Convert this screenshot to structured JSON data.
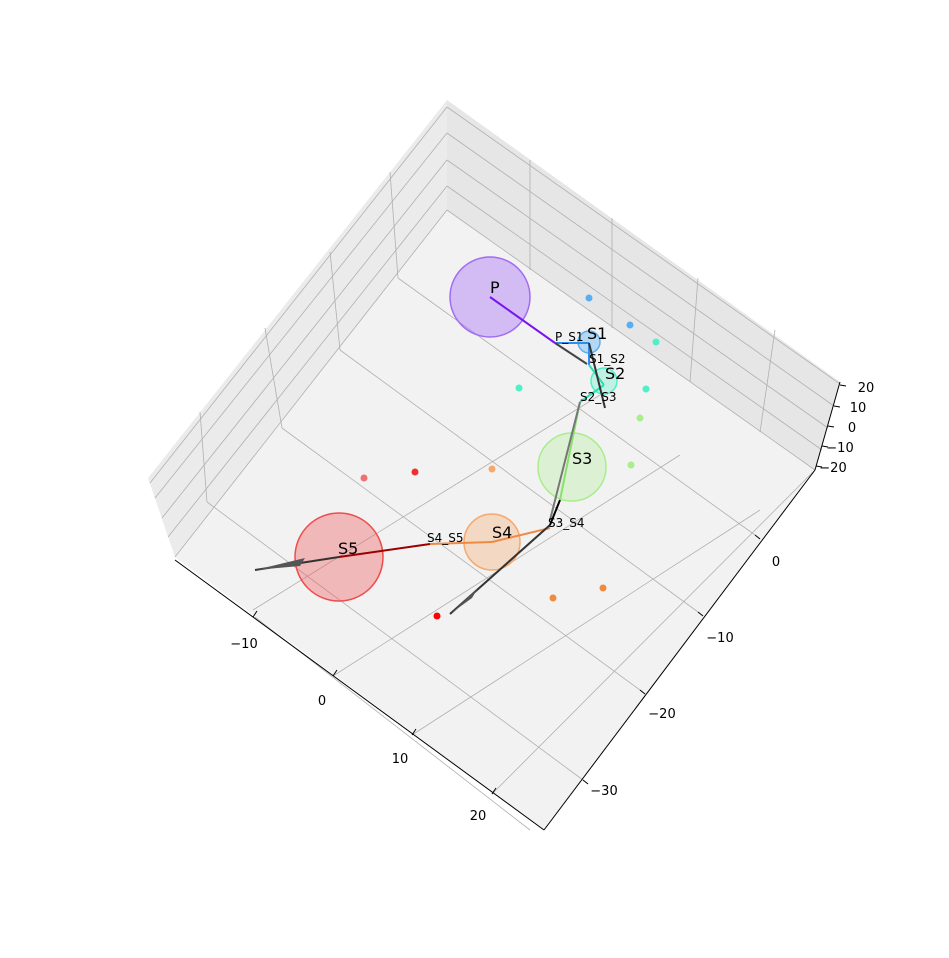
{
  "chart_data": {
    "type": "scatter",
    "projection": "3d",
    "grid": true,
    "axes": {
      "x": {
        "ticks": [
          -10,
          0,
          10,
          20
        ],
        "tick_labels": [
          "−10",
          "0",
          "10",
          "20"
        ]
      },
      "y": {
        "ticks": [
          -30,
          -20,
          -10,
          0
        ],
        "tick_labels": [
          "−30",
          "−20",
          "−10",
          "0"
        ]
      },
      "z": {
        "ticks": [
          -20,
          -10,
          0,
          10,
          20
        ],
        "tick_labels": [
          "−20",
          "−10",
          "0",
          "10",
          "20"
        ]
      }
    },
    "spheres": [
      {
        "id": "P",
        "label": "P",
        "color": "#a26cf5"
      },
      {
        "id": "S1",
        "label": "S1",
        "color": "#5aaef0"
      },
      {
        "id": "S2",
        "label": "S2",
        "color": "#4ef0c8"
      },
      {
        "id": "S3",
        "label": "S3",
        "color": "#a8ee8c"
      },
      {
        "id": "S4",
        "label": "S4",
        "color": "#f7a86c"
      },
      {
        "id": "S5",
        "label": "S5",
        "color": "#ef4c4c"
      }
    ],
    "links": [
      {
        "name": "P_S1",
        "label": "P_S1",
        "color": "#7a14f0"
      },
      {
        "name": "S1_S2",
        "label": "S1_S2",
        "color": "#2e8ef0"
      },
      {
        "name": "S2_S3",
        "label": "S2_S3",
        "color": "#2ee0b0"
      },
      {
        "name": "S3_S4",
        "label": "S3_S4",
        "color": "#8ce070"
      },
      {
        "name": "S4_S5",
        "label": "S4_S5",
        "color": "#f08a40"
      },
      {
        "name": "S5_end",
        "label": "",
        "color": "#9b0000"
      }
    ],
    "scatter_points": [
      {
        "color": "#5aaef0"
      },
      {
        "color": "#5aaef0"
      },
      {
        "color": "#4ef0c8"
      },
      {
        "color": "#4ef0c8"
      },
      {
        "color": "#4ef0c8"
      },
      {
        "color": "#a8ee8c"
      },
      {
        "color": "#a8ee8c"
      },
      {
        "color": "#f7a86c"
      },
      {
        "color": "#f08a40"
      },
      {
        "color": "#f08a40"
      },
      {
        "color": "#ef7070"
      },
      {
        "color": "#ef3030"
      },
      {
        "color": "#ff0000"
      }
    ]
  }
}
